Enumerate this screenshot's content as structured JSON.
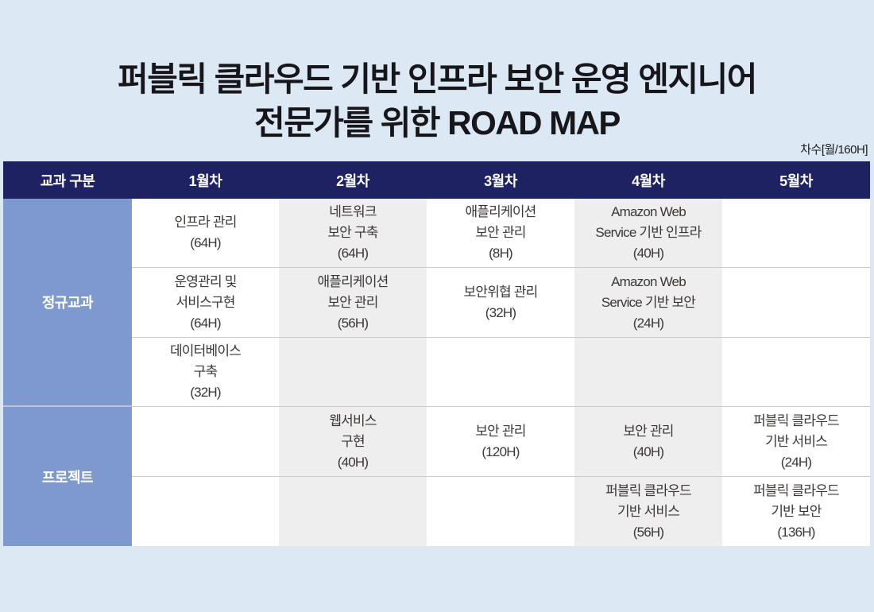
{
  "title": {
    "line1_normal": "퍼블릭 클라우드 기반 ",
    "line1_strong": "인프라 보안 운영 엔지니어",
    "line2_normal": "전문가를 위한 ",
    "line2_strong": "ROAD MAP"
  },
  "unit_note": "차수[월/160H]",
  "colors": {
    "page_background": "#dce9f5",
    "header_navy": "#1e2263",
    "section_blue": "#7e99ce",
    "cell_gray": "#eeeeee",
    "cell_white": "#ffffff",
    "divider_gray": "#cbcbcb",
    "cell_text": "#3c3736"
  },
  "table": {
    "column_headers": [
      "교과 구분",
      "1월차",
      "2월차",
      "3월차",
      "4월차",
      "5월차"
    ],
    "sections": [
      {
        "label": "정규교과",
        "row_span": 3
      },
      {
        "label": "프로젝트",
        "row_span": 2
      }
    ],
    "rows": [
      {
        "cells": [
          "인프라 관리\n(64H)",
          "네트워크\n보안 구축\n(64H)",
          "애플리케이션\n보안 관리\n(8H)",
          "Amazon Web\nService 기반 인프라\n(40H)",
          ""
        ]
      },
      {
        "cells": [
          "운영관리 및\n서비스구현\n(64H)",
          "애플리케이션\n보안 관리\n(56H)",
          "보안위협 관리\n(32H)",
          "Amazon Web\nService 기반 보안\n(24H)",
          ""
        ]
      },
      {
        "cells": [
          "데이터베이스\n구축\n(32H)",
          "",
          "",
          "",
          ""
        ]
      },
      {
        "cells": [
          "",
          "웹서비스\n구현\n(40H)",
          "보안 관리\n(120H)",
          "보안 관리\n(40H)",
          "퍼블릭 클라우드\n기반 서비스\n(24H)"
        ]
      },
      {
        "cells": [
          "",
          "",
          "",
          "퍼블릭 클라우드\n기반 서비스\n(56H)",
          "퍼블릭 클라우드\n기반 보안\n(136H)"
        ]
      }
    ]
  }
}
